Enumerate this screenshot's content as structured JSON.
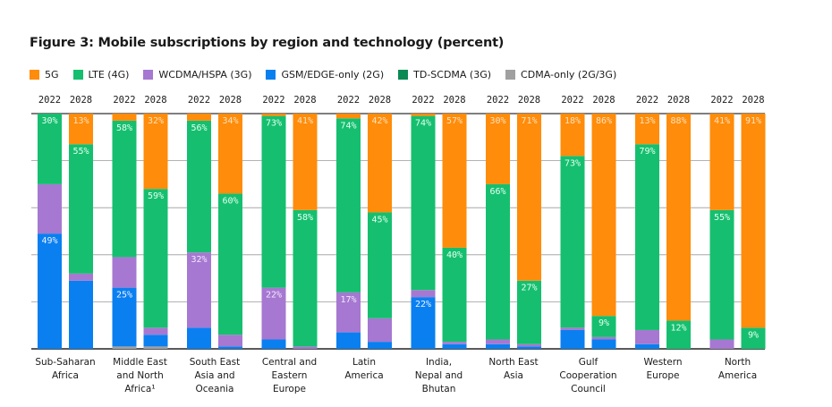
{
  "chart_data": {
    "type": "bar",
    "stacked": true,
    "title": "Figure 3: Mobile subscriptions by region and technology (percent)",
    "xlabel": "",
    "ylabel": "",
    "ylim": [
      0,
      100
    ],
    "grid": true,
    "legend_position": "top-left",
    "years": [
      "2022",
      "2028"
    ],
    "series": [
      {
        "key": "cdma",
        "name": "CDMA-only (2G/3G)",
        "color": "#a0a0a0"
      },
      {
        "key": "gsm",
        "name": "GSM/EDGE-only (2G)",
        "color": "#0a7ff0"
      },
      {
        "key": "td",
        "name": "TD-SCDMA (3G)",
        "color": "#0b8a54"
      },
      {
        "key": "wcdma",
        "name": "WCDMA/HSPA (3G)",
        "color": "#a678d1"
      },
      {
        "key": "lte",
        "name": "LTE (4G)",
        "color": "#15bf6f"
      },
      {
        "key": "fiveg",
        "name": "5G",
        "color": "#ff8c0a"
      }
    ],
    "legend_order": [
      "fiveg",
      "lte",
      "wcdma",
      "gsm",
      "td",
      "cdma"
    ],
    "categories": [
      {
        "name": [
          "Sub-Saharan",
          "Africa"
        ],
        "bars": [
          {
            "year": "2022",
            "values": {
              "cdma": 0,
              "gsm": 49,
              "td": 0,
              "wcdma": 21,
              "lte": 30,
              "fiveg": 0
            },
            "labels": {
              "lte": "30%",
              "gsm": "49%"
            }
          },
          {
            "year": "2028",
            "values": {
              "cdma": 0,
              "gsm": 29,
              "td": 0,
              "wcdma": 3,
              "lte": 55,
              "fiveg": 13
            },
            "labels": {
              "fiveg": "13%",
              "lte": "55%"
            }
          }
        ]
      },
      {
        "name": [
          "Middle East",
          "and North",
          "Africa¹"
        ],
        "bars": [
          {
            "year": "2022",
            "values": {
              "cdma": 1,
              "gsm": 25,
              "td": 0,
              "wcdma": 13,
              "lte": 58,
              "fiveg": 3
            },
            "labels": {
              "lte": "58%",
              "gsm": "25%"
            }
          },
          {
            "year": "2028",
            "values": {
              "cdma": 1,
              "gsm": 5,
              "td": 0,
              "wcdma": 3,
              "lte": 59,
              "fiveg": 32
            },
            "labels": {
              "fiveg": "32%",
              "lte": "59%"
            }
          }
        ]
      },
      {
        "name": [
          "South East",
          "Asia and",
          "Oceania"
        ],
        "bars": [
          {
            "year": "2022",
            "values": {
              "cdma": 0,
              "gsm": 9,
              "td": 0,
              "wcdma": 32,
              "lte": 56,
              "fiveg": 3
            },
            "labels": {
              "lte": "56%",
              "wcdma": "32%"
            }
          },
          {
            "year": "2028",
            "values": {
              "cdma": 0,
              "gsm": 1,
              "td": 0,
              "wcdma": 5,
              "lte": 60,
              "fiveg": 34
            },
            "labels": {
              "fiveg": "34%",
              "lte": "60%"
            }
          }
        ]
      },
      {
        "name": [
          "Central and",
          "Eastern",
          "Europe"
        ],
        "bars": [
          {
            "year": "2022",
            "values": {
              "cdma": 0,
              "gsm": 4,
              "td": 0,
              "wcdma": 22,
              "lte": 73,
              "fiveg": 1
            },
            "labels": {
              "lte": "73%",
              "wcdma": "22%"
            }
          },
          {
            "year": "2028",
            "values": {
              "cdma": 0,
              "gsm": 0,
              "td": 0,
              "wcdma": 1,
              "lte": 58,
              "fiveg": 41
            },
            "labels": {
              "fiveg": "41%",
              "lte": "58%"
            }
          }
        ]
      },
      {
        "name": [
          "Latin",
          "America"
        ],
        "bars": [
          {
            "year": "2022",
            "values": {
              "cdma": 0,
              "gsm": 7,
              "td": 0,
              "wcdma": 17,
              "lte": 74,
              "fiveg": 2
            },
            "labels": {
              "lte": "74%",
              "wcdma": "17%"
            }
          },
          {
            "year": "2028",
            "values": {
              "cdma": 0,
              "gsm": 3,
              "td": 0,
              "wcdma": 10,
              "lte": 45,
              "fiveg": 42
            },
            "labels": {
              "fiveg": "42%",
              "lte": "45%"
            }
          }
        ]
      },
      {
        "name": [
          "India,",
          "Nepal and",
          "Bhutan"
        ],
        "bars": [
          {
            "year": "2022",
            "values": {
              "cdma": 0,
              "gsm": 22,
              "td": 0,
              "wcdma": 3,
              "lte": 74,
              "fiveg": 1
            },
            "labels": {
              "lte": "74%",
              "gsm": "22%"
            }
          },
          {
            "year": "2028",
            "values": {
              "cdma": 0,
              "gsm": 2,
              "td": 0,
              "wcdma": 1,
              "lte": 40,
              "fiveg": 57
            },
            "labels": {
              "fiveg": "57%",
              "lte": "40%"
            }
          }
        ]
      },
      {
        "name": [
          "North East",
          "Asia"
        ],
        "bars": [
          {
            "year": "2022",
            "values": {
              "cdma": 0,
              "gsm": 2,
              "td": 0,
              "wcdma": 2,
              "lte": 66,
              "fiveg": 30
            },
            "labels": {
              "fiveg": "30%",
              "lte": "66%"
            }
          },
          {
            "year": "2028",
            "values": {
              "cdma": 0,
              "gsm": 1,
              "td": 0,
              "wcdma": 1,
              "lte": 27,
              "fiveg": 71
            },
            "labels": {
              "fiveg": "71%",
              "lte": "27%"
            }
          }
        ]
      },
      {
        "name": [
          "Gulf",
          "Cooperation",
          "Council"
        ],
        "bars": [
          {
            "year": "2022",
            "values": {
              "cdma": 0,
              "gsm": 8,
              "td": 0,
              "wcdma": 1,
              "lte": 73,
              "fiveg": 18
            },
            "labels": {
              "fiveg": "18%",
              "lte": "73%"
            }
          },
          {
            "year": "2028",
            "values": {
              "cdma": 0,
              "gsm": 4,
              "td": 0,
              "wcdma": 1,
              "lte": 9,
              "fiveg": 86
            },
            "labels": {
              "fiveg": "86%",
              "lte": "9%"
            }
          }
        ]
      },
      {
        "name": [
          "Western",
          "Europe"
        ],
        "bars": [
          {
            "year": "2022",
            "values": {
              "cdma": 0,
              "gsm": 2,
              "td": 0,
              "wcdma": 6,
              "lte": 79,
              "fiveg": 13
            },
            "labels": {
              "fiveg": "13%",
              "lte": "79%"
            }
          },
          {
            "year": "2028",
            "values": {
              "cdma": 0,
              "gsm": 0,
              "td": 0,
              "wcdma": 0,
              "lte": 12,
              "fiveg": 88
            },
            "labels": {
              "fiveg": "88%",
              "lte": "12%"
            }
          }
        ]
      },
      {
        "name": [
          "North",
          "America"
        ],
        "bars": [
          {
            "year": "2022",
            "values": {
              "cdma": 0,
              "gsm": 0,
              "td": 0,
              "wcdma": 4,
              "lte": 55,
              "fiveg": 41
            },
            "labels": {
              "fiveg": "41%",
              "lte": "55%"
            }
          },
          {
            "year": "2028",
            "values": {
              "cdma": 0,
              "gsm": 0,
              "td": 0,
              "wcdma": 0,
              "lte": 9,
              "fiveg": 91
            },
            "labels": {
              "fiveg": "91%",
              "lte": "9%"
            }
          }
        ]
      }
    ],
    "label_colors": {
      "fiveg": "#ffe2bf",
      "lte": "#e6fff0",
      "wcdma": "#f3e8ff",
      "gsm": "#e8f3ff"
    }
  }
}
